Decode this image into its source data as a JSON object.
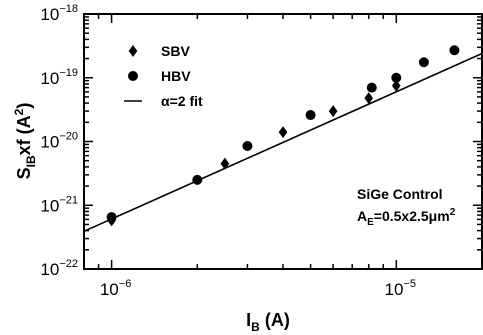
{
  "chart_data": {
    "type": "scatter",
    "xscale": "log",
    "yscale": "log",
    "xlim": [
      8e-07,
      2e-05
    ],
    "ylim": [
      1e-22,
      1e-18
    ],
    "grid": false,
    "legend_position": "top-left",
    "xlabel": {
      "main": "I",
      "sub": "B",
      "rest": " (A)"
    },
    "ylabel": {
      "main": "S",
      "sub": "IB",
      "rest": "xf (A",
      "sup": "2",
      "end": ")"
    },
    "x_ticks": [
      {
        "value": 1e-06,
        "base": "10",
        "exp": "−6"
      },
      {
        "value": 1e-05,
        "base": "10",
        "exp": "−5"
      }
    ],
    "y_ticks": [
      {
        "value": 1e-22,
        "base": "10",
        "exp": "−22"
      },
      {
        "value": 1e-21,
        "base": "10",
        "exp": "−21"
      },
      {
        "value": 1e-20,
        "base": "10",
        "exp": "−20"
      },
      {
        "value": 1e-19,
        "base": "10",
        "exp": "−19"
      },
      {
        "value": 1e-18,
        "base": "10",
        "exp": "−18"
      }
    ],
    "series": [
      {
        "name": "SBV",
        "marker": "diamond",
        "points": [
          [
            1e-06,
            5.8e-22
          ],
          [
            2.5e-06,
            4.5e-21
          ],
          [
            4e-06,
            1.4e-20
          ],
          [
            6e-06,
            3e-20
          ],
          [
            8e-06,
            4.8e-20
          ],
          [
            1e-05,
            7.5e-20
          ]
        ]
      },
      {
        "name": "HBV",
        "marker": "circle",
        "points": [
          [
            1e-06,
            6.5e-22
          ],
          [
            2e-06,
            2.5e-21
          ],
          [
            3e-06,
            8.5e-21
          ],
          [
            5e-06,
            2.6e-20
          ],
          [
            8.2e-06,
            7e-20
          ],
          [
            1e-05,
            1e-19
          ],
          [
            1.25e-05,
            1.75e-19
          ],
          [
            1.6e-05,
            2.7e-19
          ]
        ]
      },
      {
        "name": "α=2 fit",
        "marker": "line",
        "points": [
          [
            8e-07,
            3.9e-22
          ],
          [
            2e-05,
            2.4e-19
          ]
        ]
      }
    ],
    "annotations": [
      {
        "parts": [
          {
            "t": "SiGe Control"
          }
        ]
      },
      {
        "parts": [
          {
            "t": "A"
          },
          {
            "t": "E",
            "sub": true
          },
          {
            "t": "=0.5x2.5μm"
          },
          {
            "t": "2",
            "sup": true
          }
        ]
      }
    ]
  }
}
